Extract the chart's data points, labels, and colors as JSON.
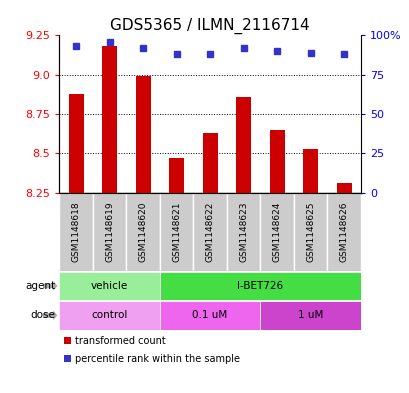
{
  "title": "GDS5365 / ILMN_2116714",
  "samples": [
    "GSM1148618",
    "GSM1148619",
    "GSM1148620",
    "GSM1148621",
    "GSM1148622",
    "GSM1148623",
    "GSM1148624",
    "GSM1148625",
    "GSM1148626"
  ],
  "bar_values": [
    8.88,
    9.18,
    8.99,
    8.47,
    8.63,
    8.86,
    8.65,
    8.53,
    8.31
  ],
  "bar_base": 8.25,
  "dot_values": [
    9.18,
    9.21,
    9.17,
    9.13,
    9.13,
    9.17,
    9.15,
    9.14,
    9.13
  ],
  "ylim": [
    8.25,
    9.25
  ],
  "yticks_left": [
    8.25,
    8.5,
    8.75,
    9.0,
    9.25
  ],
  "yticks_right": [
    0,
    25,
    50,
    75,
    100
  ],
  "ytick_right_labels": [
    "0",
    "25",
    "50",
    "75",
    "100%"
  ],
  "bar_color": "#cc0000",
  "dot_color": "#3333cc",
  "agent_groups": [
    {
      "label": "vehicle",
      "start": 0,
      "end": 3,
      "color": "#99ee99"
    },
    {
      "label": "I-BET726",
      "start": 3,
      "end": 9,
      "color": "#44dd44"
    }
  ],
  "dose_groups": [
    {
      "label": "control",
      "start": 0,
      "end": 3,
      "color": "#f0a0f0"
    },
    {
      "label": "0.1 uM",
      "start": 3,
      "end": 6,
      "color": "#ee66ee"
    },
    {
      "label": "1 uM",
      "start": 6,
      "end": 9,
      "color": "#cc44cc"
    }
  ],
  "legend_items": [
    {
      "color": "#cc0000",
      "label": "transformed count"
    },
    {
      "color": "#3333cc",
      "label": "percentile rank within the sample"
    }
  ],
  "sample_box_color": "#cccccc",
  "title_fontsize": 11,
  "tick_fontsize": 8,
  "sample_fontsize": 6.5
}
